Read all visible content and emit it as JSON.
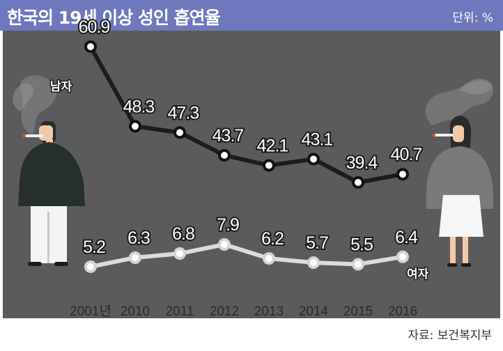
{
  "header": {
    "title": "한국의 19세 이상 성인 흡연율",
    "unit": "단위: %"
  },
  "footer": {
    "source": "자료: 보건복지부"
  },
  "colors": {
    "header_bg": "#6e78bd",
    "plot_bg": "#5b5b5d",
    "male_line": "#1c1c1c",
    "female_line": "#dcdcdc",
    "male_marker_fill": "#ffffff",
    "female_marker_fill": "#ffffff"
  },
  "chart_data": {
    "type": "line",
    "title": "한국의 19세 이상 성인 흡연율",
    "unit": "단위: %",
    "categories": [
      "2001년",
      "2010",
      "2011",
      "2012",
      "2013",
      "2014",
      "2015",
      "2016"
    ],
    "series": [
      {
        "name": "남자",
        "values": [
          60.9,
          48.3,
          47.3,
          43.7,
          42.1,
          43.1,
          39.4,
          40.7
        ]
      },
      {
        "name": "여자",
        "values": [
          5.2,
          6.3,
          6.8,
          7.9,
          6.2,
          5.7,
          5.5,
          6.4
        ]
      }
    ],
    "grid": false,
    "legend": "inline labels at line ends"
  }
}
